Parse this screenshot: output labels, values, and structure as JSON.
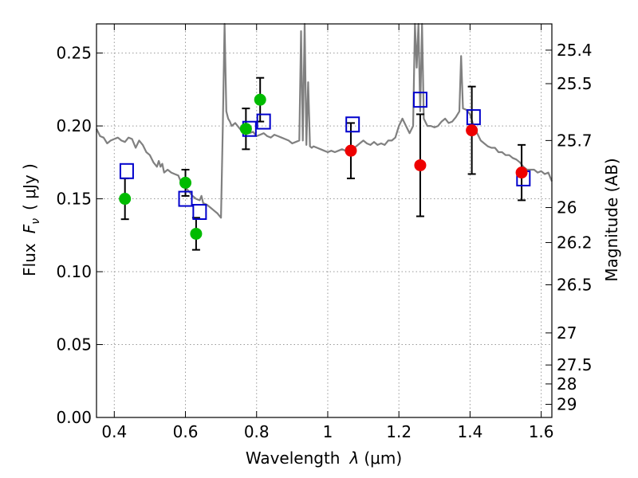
{
  "chart_data": {
    "type": "scatter",
    "xlabel_prefix": "Wavelength",
    "xlabel_symbol": "λ",
    "xlabel_unit": "(μm)",
    "ylabel_prefix": "Flux",
    "ylabel_symbol": "F",
    "ylabel_subscript": "ν",
    "ylabel_unit": "( μJy )",
    "ylabel_right": "Magnitude (AB)",
    "xlim": [
      0.35,
      1.63
    ],
    "ylim": [
      0.0,
      0.27
    ],
    "grid": true,
    "x_ticks": [
      0.4,
      0.6,
      0.8,
      1.0,
      1.2,
      1.4,
      1.6
    ],
    "x_tick_labels": [
      "0.4",
      "0.6",
      "0.8",
      "1",
      "1.2",
      "1.4",
      "1.6"
    ],
    "y_ticks": [
      0.0,
      0.05,
      0.1,
      0.15,
      0.2,
      0.25
    ],
    "y_tick_labels": [
      "0.00",
      "0.05",
      "0.10",
      "0.15",
      "0.20",
      "0.25"
    ],
    "mag_ticks": [
      {
        "label": "25.4",
        "flux": 0.252
      },
      {
        "label": "25.5",
        "flux": 0.229
      },
      {
        "label": "25.7",
        "flux": 0.19
      },
      {
        "label": "26",
        "flux": 0.144
      },
      {
        "label": "26.2",
        "flux": 0.12
      },
      {
        "label": "26.5",
        "flux": 0.091
      },
      {
        "label": "27",
        "flux": 0.058
      },
      {
        "label": "27.5",
        "flux": 0.036
      },
      {
        "label": "28",
        "flux": 0.023
      },
      {
        "label": "29",
        "flux": 0.009
      }
    ],
    "colors": {
      "model": "#808080",
      "green": "#00bb00",
      "red": "#ee0000",
      "squares": "#0000cc",
      "errorbar": "#000000",
      "grid": "#999999"
    },
    "model_spectrum": {
      "x": [
        0.35,
        0.36,
        0.37,
        0.38,
        0.39,
        0.4,
        0.41,
        0.42,
        0.43,
        0.44,
        0.45,
        0.46,
        0.47,
        0.48,
        0.49,
        0.5,
        0.51,
        0.52,
        0.525,
        0.53,
        0.535,
        0.54,
        0.55,
        0.56,
        0.57,
        0.58,
        0.59,
        0.6,
        0.61,
        0.62,
        0.63,
        0.64,
        0.645,
        0.65,
        0.66,
        0.67,
        0.68,
        0.69,
        0.7,
        0.705,
        0.71,
        0.715,
        0.72,
        0.725,
        0.73,
        0.74,
        0.75,
        0.76,
        0.77,
        0.78,
        0.79,
        0.8,
        0.81,
        0.82,
        0.83,
        0.84,
        0.85,
        0.86,
        0.87,
        0.88,
        0.89,
        0.9,
        0.91,
        0.92,
        0.925,
        0.93,
        0.935,
        0.94,
        0.945,
        0.95,
        0.955,
        0.96,
        0.97,
        0.98,
        0.99,
        1.0,
        1.01,
        1.02,
        1.03,
        1.04,
        1.05,
        1.06,
        1.07,
        1.08,
        1.09,
        1.1,
        1.11,
        1.12,
        1.13,
        1.14,
        1.15,
        1.16,
        1.17,
        1.18,
        1.19,
        1.2,
        1.21,
        1.22,
        1.23,
        1.24,
        1.245,
        1.25,
        1.255,
        1.26,
        1.265,
        1.27,
        1.28,
        1.29,
        1.3,
        1.31,
        1.32,
        1.33,
        1.34,
        1.35,
        1.36,
        1.37,
        1.375,
        1.38,
        1.39,
        1.4,
        1.41,
        1.42,
        1.43,
        1.44,
        1.45,
        1.46,
        1.47,
        1.48,
        1.49,
        1.5,
        1.51,
        1.52,
        1.53,
        1.54,
        1.55,
        1.56,
        1.57,
        1.58,
        1.59,
        1.6,
        1.61,
        1.62,
        1.63
      ],
      "y": [
        0.198,
        0.193,
        0.192,
        0.188,
        0.19,
        0.191,
        0.192,
        0.19,
        0.189,
        0.192,
        0.191,
        0.185,
        0.19,
        0.187,
        0.182,
        0.18,
        0.175,
        0.172,
        0.176,
        0.172,
        0.174,
        0.168,
        0.17,
        0.168,
        0.167,
        0.166,
        0.16,
        0.158,
        0.155,
        0.152,
        0.15,
        0.149,
        0.152,
        0.147,
        0.146,
        0.144,
        0.142,
        0.14,
        0.137,
        0.2,
        0.28,
        0.21,
        0.205,
        0.203,
        0.2,
        0.202,
        0.199,
        0.196,
        0.197,
        0.195,
        0.196,
        0.193,
        0.194,
        0.195,
        0.193,
        0.192,
        0.194,
        0.193,
        0.192,
        0.191,
        0.19,
        0.188,
        0.189,
        0.19,
        0.265,
        0.19,
        0.275,
        0.187,
        0.23,
        0.186,
        0.185,
        0.186,
        0.185,
        0.184,
        0.183,
        0.182,
        0.183,
        0.182,
        0.183,
        0.184,
        0.183,
        0.185,
        0.184,
        0.186,
        0.188,
        0.19,
        0.188,
        0.187,
        0.189,
        0.187,
        0.188,
        0.187,
        0.19,
        0.19,
        0.192,
        0.2,
        0.205,
        0.2,
        0.195,
        0.2,
        0.27,
        0.24,
        0.27,
        0.21,
        0.27,
        0.205,
        0.2,
        0.2,
        0.199,
        0.2,
        0.203,
        0.205,
        0.202,
        0.203,
        0.206,
        0.21,
        0.248,
        0.212,
        0.211,
        0.208,
        0.2,
        0.195,
        0.19,
        0.188,
        0.186,
        0.185,
        0.185,
        0.182,
        0.182,
        0.18,
        0.18,
        0.178,
        0.177,
        0.175,
        0.172,
        0.17,
        0.17,
        0.17,
        0.168,
        0.169,
        0.167,
        0.168,
        0.162
      ]
    },
    "series": [
      {
        "marker": "green-circle",
        "x": [
          0.43,
          0.6,
          0.63,
          0.77,
          0.81
        ],
        "y": [
          0.15,
          0.161,
          0.126,
          0.198,
          0.218
        ],
        "yerr": [
          0.014,
          0.009,
          0.011,
          0.014,
          0.015
        ]
      },
      {
        "marker": "red-circle",
        "x": [
          1.065,
          1.26,
          1.405,
          1.545
        ],
        "y": [
          0.183,
          0.173,
          0.197,
          0.168
        ],
        "yerr": [
          0.019,
          0.035,
          0.03,
          0.019
        ]
      },
      {
        "marker": "blue-square",
        "x": [
          0.435,
          0.6,
          0.64,
          0.78,
          0.82,
          1.07,
          1.26,
          1.41,
          1.55
        ],
        "y": [
          0.169,
          0.15,
          0.141,
          0.198,
          0.203,
          0.201,
          0.218,
          0.206,
          0.164
        ]
      }
    ]
  }
}
